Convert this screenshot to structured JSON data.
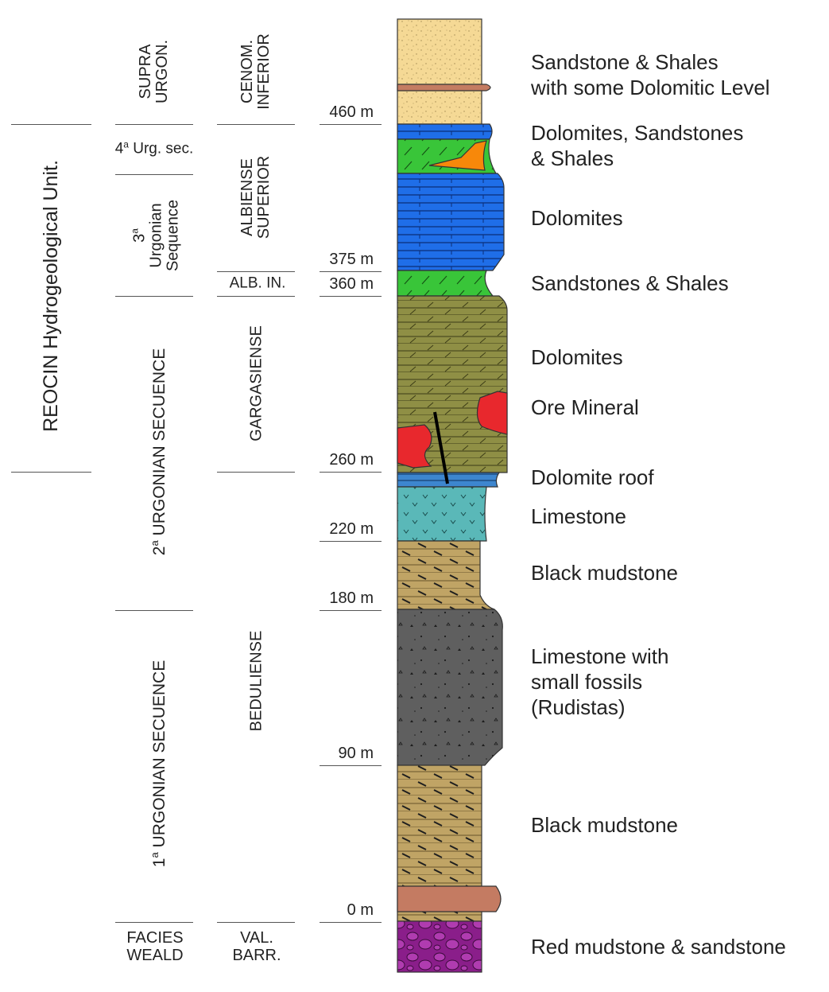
{
  "hydro_unit": "REOCIN Hydrogeological Unit.",
  "sequences": {
    "supra_urgon": "SUPRA\nURGON.",
    "urg4": "Urg. sec.",
    "urg4_num": "4",
    "urg3_title": "Urgonian\nSequence",
    "urg3_num": "3",
    "urg2": "URGONIAN SECUENCE",
    "urg2_num": "2",
    "urg1": "URGONIAN SECUENCE",
    "urg1_num": "1",
    "sup_a": "a",
    "facies": "FACIES\nWEALD"
  },
  "stages": {
    "cenom": "CENOM.\nINFERIOR",
    "albiense_sup": "ALBIENSE\nSUPERIOR",
    "alb_in": "ALB. IN.",
    "gargasiense": "GARGASIENSE",
    "beduliense": "BEDULIENSE",
    "val_barr": "VAL.\nBARR."
  },
  "depths": [
    "460 m",
    "375 m",
    "360 m",
    "260 m",
    "220 m",
    "180 m",
    "90 m",
    "0 m"
  ],
  "lithology": [
    "Sandstone & Shales\nwith some Dolomitic Level",
    "Dolomites, Sandstones\n& Shales",
    "Dolomites",
    "Sandstones & Shales",
    "Dolomites",
    "Ore Mineral",
    "Dolomite roof",
    "Limestone",
    "Black mudstone",
    "Limestone with\nsmall fossils\n(Rudistas)",
    "Black mudstone",
    "Red mudstone & sandstone"
  ],
  "colors": {
    "sandstone": "#f5d995",
    "shale_band": "#c47b62",
    "dolomite_blue": "#1f6ee8",
    "green": "#39c539",
    "orange": "#f7880a",
    "olive": "#8f8f45",
    "ore_red": "#e8282d",
    "roof_blue": "#3d86cf",
    "limestone_teal": "#5ab8b8",
    "mudstone": "#c0a465",
    "rudist_grey": "#5f5f5f",
    "red_mudstone": "#8a1e8a"
  }
}
